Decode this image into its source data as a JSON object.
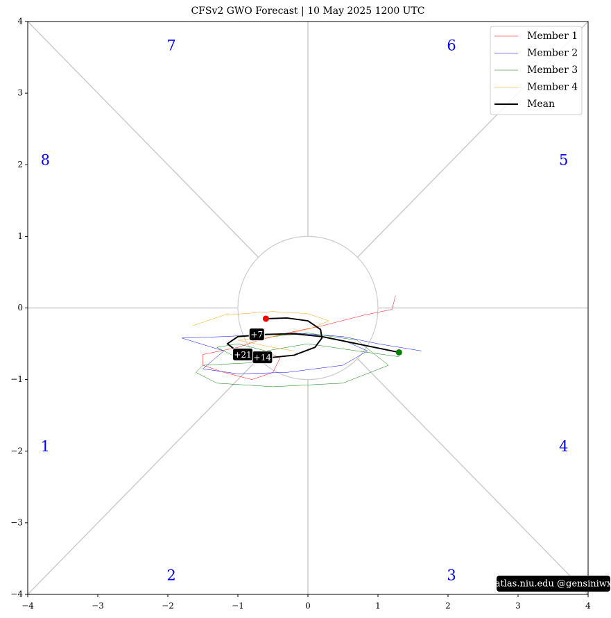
{
  "chart_data": {
    "type": "phase",
    "title": "CFSv2 GWO Forecast  |  10  May  2025 1200 UTC",
    "xlim": [
      -4,
      4
    ],
    "ylim": [
      -4,
      4
    ],
    "xticks": [
      {
        "value": -4,
        "label": "−4"
      },
      {
        "value": -3,
        "label": "−3"
      },
      {
        "value": -2,
        "label": "−2"
      },
      {
        "value": -1,
        "label": "−1"
      },
      0,
      1,
      2,
      3,
      4
    ],
    "yticks": [
      {
        "value": -4,
        "label": "−4"
      },
      {
        "value": -3,
        "label": "−3"
      },
      {
        "value": -2,
        "label": "−2"
      },
      {
        "value": -1,
        "label": "−1"
      },
      0,
      1,
      2,
      3,
      4
    ],
    "phase_labels": [
      "1",
      "2",
      "3",
      "4",
      "5",
      "6",
      "7",
      "8"
    ],
    "phase_color": "#0000ff",
    "series": [
      {
        "name": "Member 1",
        "color": "#ff0000",
        "width": 0.5,
        "x": [
          1.25,
          1.2,
          0.8,
          0.2,
          -0.3,
          -0.7,
          -1.0,
          -1.5,
          -1.5,
          -1.2,
          -0.8,
          -0.5,
          -0.4,
          -0.6
        ],
        "values": [
          0.17,
          -0.02,
          -0.1,
          -0.25,
          -0.35,
          -0.45,
          -0.55,
          -0.65,
          -0.8,
          -0.9,
          -1.0,
          -0.9,
          -0.7,
          -0.6
        ]
      },
      {
        "name": "Member 2",
        "color": "#0000ff",
        "width": 0.5,
        "x": [
          1.62,
          1.0,
          0.5,
          -0.2,
          -0.8,
          -1.2,
          -1.8,
          -1.2,
          -1.5,
          -1.0,
          -0.3,
          0.5,
          0.85,
          0.5
        ],
        "values": [
          -0.6,
          -0.5,
          -0.4,
          -0.35,
          -0.38,
          -0.4,
          -0.42,
          -0.6,
          -0.85,
          -0.92,
          -0.9,
          -0.8,
          -0.6,
          -0.45
        ]
      },
      {
        "name": "Member 3",
        "color": "#008000",
        "width": 0.5,
        "x": [
          1.3,
          0.7,
          0.0,
          -0.6,
          -1.0,
          -1.3,
          -1.0,
          -0.5,
          -1.5,
          -1.6,
          -1.3,
          -0.5,
          0.5,
          1.15,
          0.7,
          0.0,
          -0.5
        ],
        "values": [
          -0.68,
          -0.6,
          -0.5,
          -0.6,
          -0.5,
          -0.55,
          -0.7,
          -0.75,
          -0.8,
          -0.9,
          -1.05,
          -1.1,
          -1.05,
          -0.8,
          -0.45,
          -0.35,
          -0.4
        ]
      },
      {
        "name": "Member 4",
        "color": "#ffa500",
        "width": 0.5,
        "x": [
          -1.65,
          -1.2,
          -0.5,
          0.0,
          0.3,
          0.0,
          -0.5,
          -1.0,
          -0.5,
          -0.2
        ],
        "values": [
          -0.25,
          -0.1,
          -0.05,
          -0.08,
          -0.18,
          -0.3,
          -0.4,
          -0.45,
          -0.55,
          -0.6
        ]
      },
      {
        "name": "Mean",
        "color": "#000000",
        "width": 2,
        "x": [
          -0.6,
          -0.3,
          0.0,
          0.18,
          0.2,
          0.1,
          -0.2,
          -0.6,
          -0.95,
          -1.15,
          -1.0,
          -0.6,
          -0.2,
          0.2,
          0.7,
          1.3
        ],
        "values": [
          -0.15,
          -0.14,
          -0.18,
          -0.3,
          -0.42,
          -0.55,
          -0.66,
          -0.7,
          -0.65,
          -0.5,
          -0.4,
          -0.37,
          -0.36,
          -0.4,
          -0.5,
          -0.62
        ]
      }
    ],
    "start_color": "#ff0000",
    "end_color": "#008000",
    "annotations": [
      {
        "text": "+7",
        "x": -0.73,
        "y": -0.37
      },
      {
        "text": "+14",
        "x": -0.65,
        "y": -0.69
      },
      {
        "text": "+21",
        "x": -0.93,
        "y": -0.65
      }
    ],
    "legend": "upper right",
    "watermark": "atlas.niu.edu  @gensiniwx"
  }
}
